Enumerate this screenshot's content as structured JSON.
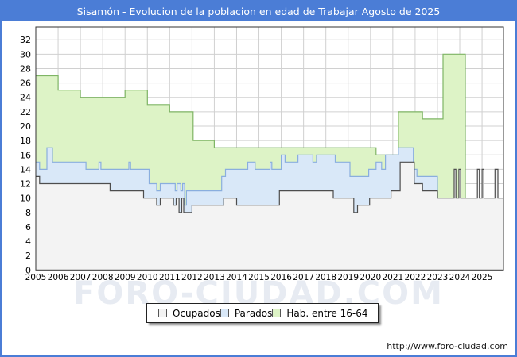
{
  "window": {
    "title": "Sisamón - Evolucion de la poblacion en edad de Trabajar Agosto de 2025",
    "frame_color": "#4b7dd6",
    "watermark": "FORO-CIUDAD.COM",
    "footer_url": "http://www.foro-ciudad.com"
  },
  "legend": {
    "items": [
      {
        "label": "Ocupados",
        "color": "#f3f3f3",
        "border": "#555555"
      },
      {
        "label": "Parados",
        "color": "#d9e8f8",
        "border": "#555555"
      },
      {
        "label": "Hab. entre 16-64",
        "color": "#ddf3c6",
        "border": "#555555"
      }
    ]
  },
  "chart_data": {
    "type": "area",
    "title": "Sisamón - Evolucion de la poblacion en edad de Trabajar Agosto de 2025",
    "grid": true,
    "legend_position": "bottom",
    "x_axis": {
      "min": 2005,
      "max": 2025.96,
      "ticks": [
        2005,
        2006,
        2007,
        2008,
        2009,
        2010,
        2011,
        2012,
        2013,
        2014,
        2015,
        2016,
        2017,
        2018,
        2019,
        2020,
        2021,
        2022,
        2023,
        2024,
        2025
      ]
    },
    "y_axis": {
      "min": 0,
      "max": 32,
      "tick_step": 2
    },
    "series": [
      {
        "name": "Hab. entre 16-64",
        "fill": "#ddf3c6",
        "stroke": "#7fb565",
        "steps": [
          [
            2005.0,
            27
          ],
          [
            2006.0,
            25
          ],
          [
            2007.0,
            24
          ],
          [
            2009.0,
            25
          ],
          [
            2010.0,
            23
          ],
          [
            2011.0,
            22
          ],
          [
            2012.05,
            18
          ],
          [
            2013.0,
            17
          ],
          [
            2020.25,
            16
          ],
          [
            2021.25,
            22
          ],
          [
            2022.33,
            21
          ],
          [
            2023.25,
            30
          ],
          [
            2024.25,
            10
          ]
        ]
      },
      {
        "name": "Parados",
        "fill": "#d9e8f8",
        "stroke": "#8aaede",
        "steps": [
          [
            2005.0,
            15
          ],
          [
            2005.17,
            14
          ],
          [
            2005.5,
            17
          ],
          [
            2005.75,
            15
          ],
          [
            2007.25,
            14
          ],
          [
            2007.83,
            15
          ],
          [
            2007.92,
            14
          ],
          [
            2009.17,
            15
          ],
          [
            2009.25,
            14
          ],
          [
            2010.08,
            12
          ],
          [
            2010.42,
            11
          ],
          [
            2010.58,
            12
          ],
          [
            2011.25,
            11
          ],
          [
            2011.33,
            12
          ],
          [
            2011.5,
            11
          ],
          [
            2011.58,
            12
          ],
          [
            2011.67,
            9
          ],
          [
            2011.75,
            11
          ],
          [
            2013.33,
            13
          ],
          [
            2013.5,
            14
          ],
          [
            2014.5,
            15
          ],
          [
            2014.83,
            14
          ],
          [
            2015.5,
            15
          ],
          [
            2015.58,
            14
          ],
          [
            2016.0,
            16
          ],
          [
            2016.17,
            15
          ],
          [
            2016.75,
            16
          ],
          [
            2017.42,
            15
          ],
          [
            2017.58,
            16
          ],
          [
            2018.42,
            15
          ],
          [
            2019.08,
            13
          ],
          [
            2019.92,
            14
          ],
          [
            2020.25,
            15
          ],
          [
            2020.5,
            14
          ],
          [
            2020.67,
            16
          ],
          [
            2021.25,
            17
          ],
          [
            2021.92,
            14
          ],
          [
            2022.08,
            13
          ],
          [
            2023.0,
            10
          ]
        ]
      },
      {
        "name": "Ocupados",
        "fill": "#f3f3f3",
        "stroke": "#4d4d4d",
        "steps": [
          [
            2005.0,
            13
          ],
          [
            2005.17,
            12
          ],
          [
            2008.33,
            11
          ],
          [
            2009.83,
            10
          ],
          [
            2010.42,
            9
          ],
          [
            2010.58,
            10
          ],
          [
            2011.17,
            9
          ],
          [
            2011.29,
            10
          ],
          [
            2011.42,
            8
          ],
          [
            2011.54,
            10
          ],
          [
            2011.63,
            8
          ],
          [
            2012.0,
            9
          ],
          [
            2013.42,
            10
          ],
          [
            2014.0,
            9
          ],
          [
            2015.92,
            11
          ],
          [
            2018.33,
            10
          ],
          [
            2019.25,
            8
          ],
          [
            2019.42,
            9
          ],
          [
            2019.96,
            10
          ],
          [
            2020.92,
            11
          ],
          [
            2021.33,
            15
          ],
          [
            2021.96,
            12
          ],
          [
            2022.33,
            11
          ],
          [
            2023.0,
            10
          ],
          [
            2023.75,
            14
          ],
          [
            2023.83,
            10
          ],
          [
            2023.96,
            14
          ],
          [
            2024.04,
            10
          ],
          [
            2024.79,
            14
          ],
          [
            2024.88,
            10
          ],
          [
            2025.0,
            14
          ],
          [
            2025.08,
            10
          ],
          [
            2025.58,
            14
          ],
          [
            2025.71,
            10
          ]
        ]
      }
    ]
  }
}
